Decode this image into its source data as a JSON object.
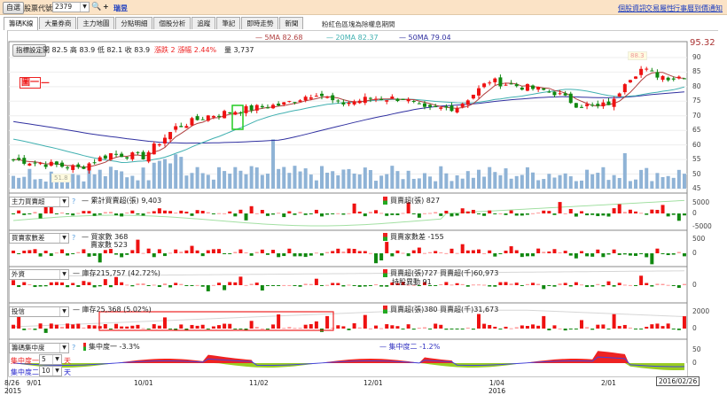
{
  "topbar": {
    "watchlist_button": "自選",
    "stock_code_label": "股票代號:",
    "stock_code": "2379",
    "add_label": "+",
    "stock_name": "瑞昱",
    "links": [
      "個股資訊",
      "交易屬性",
      "行事曆",
      "到價通知"
    ]
  },
  "tabs": [
    "籌碼K線",
    "大量券商",
    "主力地圖",
    "分點明細",
    "個股分析",
    "追蹤",
    "筆記",
    "即時走勢",
    "新聞"
  ],
  "notice": "粉紅色區塊為除權息期間",
  "main": {
    "indicator_button": "指標設定",
    "open": "開 82.5",
    "high": "高 83.9",
    "low": "低 82.1",
    "close": "收 83.9",
    "change": "漲跌 2",
    "change_pct": "漲幅 2.44%",
    "volume": "量 3,737",
    "ma5": "5MA 82.68",
    "ma20": "20MA 82.37",
    "ma50": "50MA 79.04",
    "max_label": "95.32",
    "peak_label": "88.3",
    "low_label": "51.8",
    "stamp": "圖一",
    "yticks": [
      "90",
      "85",
      "80",
      "75",
      "70",
      "65",
      "60",
      "55",
      "50",
      "45"
    ],
    "colors": {
      "up": "#ee1111",
      "down": "#118811",
      "ma5": "#b04040",
      "ma20": "#40b0b0",
      "ma50": "#3030a0",
      "volume": "#8fb3d6"
    }
  },
  "panels": {
    "p1": {
      "select": "主力買賣超",
      "help": "?",
      "legend_a": "累計買賣超(張) 9,403",
      "legend_b": "買賣超(張) 827",
      "ticks": [
        "5000",
        "0",
        "-5000"
      ]
    },
    "p2": {
      "select": "買賣家數差",
      "help": "?",
      "legend_a": "買家數 368",
      "legend_c": "賣家數 523",
      "legend_b": "買賣家數差 -155",
      "ticks": [
        "500",
        "0"
      ]
    },
    "p3": {
      "select": "外資",
      "legend_a": "庫存215,757 (42.72%)",
      "legend_b": "買賣超(張)727 買賣超(千)60,973",
      "legend_c": "持股異動 91",
      "ticks": [
        "0"
      ]
    },
    "p4": {
      "select": "投信",
      "legend_a": "庫存25,368 (5.02%)",
      "legend_b": "買賣超(張)380 買賣超(千)31,673",
      "ticks": [
        "2000",
        "0"
      ]
    },
    "p5": {
      "select": "籌碼集中度",
      "help": "?",
      "legend_a": "集中度一 -3.3%",
      "legend_b": "集中度二 -1.2%",
      "c1_label": "集中度一:",
      "c1_value": "5",
      "c2_label": "集中度二:",
      "c2_value": "10",
      "unit": "天",
      "ticks": [
        "50",
        "0"
      ]
    }
  },
  "xaxis": {
    "labels": [
      "8/26",
      "9/01",
      "10/01",
      "11/02",
      "12/01",
      "1/04",
      "2/01"
    ],
    "years": [
      "2015",
      "2016"
    ],
    "cursor_date": "2016/02/26"
  }
}
